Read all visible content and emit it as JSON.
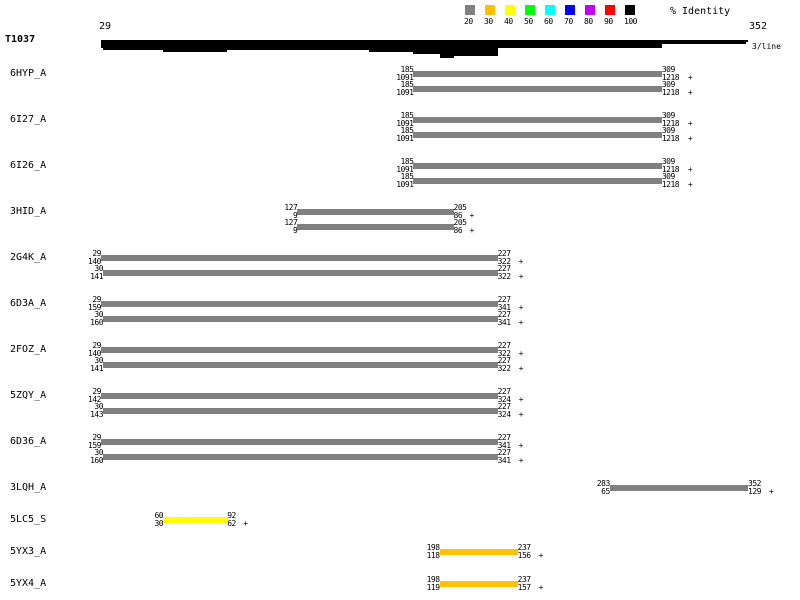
{
  "query": {
    "name": "T1037",
    "start": "29",
    "end": "352",
    "per_line_label": "3/line"
  },
  "legend": {
    "title": "% Identity",
    "items": [
      {
        "label": "20",
        "color": "#808080"
      },
      {
        "label": "30",
        "color": "#ffc000"
      },
      {
        "label": "40",
        "color": "#ffff00"
      },
      {
        "label": "50",
        "color": "#00ff00"
      },
      {
        "label": "60",
        "color": "#00ffff"
      },
      {
        "label": "70",
        "color": "#0000ff"
      },
      {
        "label": "80",
        "color": "#c000ff"
      },
      {
        "label": "90",
        "color": "#ff0000"
      },
      {
        "label": "100",
        "color": "#000000"
      }
    ]
  },
  "coverage": [
    [
      [
        29,
        352
      ]
    ],
    [
      [
        29,
        351
      ]
    ],
    [
      [
        29,
        309
      ]
    ],
    [
      [
        29,
        309
      ]
    ],
    [
      [
        30,
        227
      ]
    ],
    [
      [
        60,
        92
      ],
      [
        163,
        227
      ]
    ],
    [
      [
        185,
        227
      ]
    ],
    [
      [
        198,
        227
      ]
    ],
    [
      [
        198,
        205
      ]
    ]
  ],
  "hits": [
    {
      "name": "6HYP_A",
      "bars": [
        {
          "qs": "185",
          "qe": "309",
          "ts": "1091",
          "te": "1218",
          "strand": "+",
          "identity": 20
        },
        {
          "qs": "185",
          "qe": "309",
          "ts": "1091",
          "te": "1218",
          "strand": "+",
          "identity": 20
        }
      ]
    },
    {
      "name": "6I27_A",
      "bars": [
        {
          "qs": "185",
          "qe": "309",
          "ts": "1091",
          "te": "1218",
          "strand": "+",
          "identity": 20
        },
        {
          "qs": "185",
          "qe": "309",
          "ts": "1091",
          "te": "1218",
          "strand": "+",
          "identity": 20
        }
      ]
    },
    {
      "name": "6I26_A",
      "bars": [
        {
          "qs": "185",
          "qe": "309",
          "ts": "1091",
          "te": "1218",
          "strand": "+",
          "identity": 20
        },
        {
          "qs": "185",
          "qe": "309",
          "ts": "1091",
          "te": "1218",
          "strand": "+",
          "identity": 20
        }
      ]
    },
    {
      "name": "3HID_A",
      "bars": [
        {
          "qs": "127",
          "qe": "205",
          "ts": "9",
          "te": "86",
          "strand": "+",
          "identity": 20
        },
        {
          "qs": "127",
          "qe": "205",
          "ts": "9",
          "te": "86",
          "strand": "+",
          "identity": 20
        }
      ]
    },
    {
      "name": "2G4K_A",
      "bars": [
        {
          "qs": "29",
          "qe": "227",
          "ts": "140",
          "te": "322",
          "strand": "+",
          "identity": 20
        },
        {
          "qs": "30",
          "qe": "227",
          "ts": "141",
          "te": "322",
          "strand": "+",
          "identity": 20
        }
      ]
    },
    {
      "name": "6D3A_A",
      "bars": [
        {
          "qs": "29",
          "qe": "227",
          "ts": "159",
          "te": "341",
          "strand": "+",
          "identity": 20
        },
        {
          "qs": "30",
          "qe": "227",
          "ts": "160",
          "te": "341",
          "strand": "+",
          "identity": 20
        }
      ]
    },
    {
      "name": "2FOZ_A",
      "bars": [
        {
          "qs": "29",
          "qe": "227",
          "ts": "140",
          "te": "322",
          "strand": "+",
          "identity": 20
        },
        {
          "qs": "30",
          "qe": "227",
          "ts": "141",
          "te": "322",
          "strand": "+",
          "identity": 20
        }
      ]
    },
    {
      "name": "5ZQY_A",
      "bars": [
        {
          "qs": "29",
          "qe": "227",
          "ts": "142",
          "te": "324",
          "strand": "+",
          "identity": 20
        },
        {
          "qs": "30",
          "qe": "227",
          "ts": "143",
          "te": "324",
          "strand": "+",
          "identity": 20
        }
      ]
    },
    {
      "name": "6D36_A",
      "bars": [
        {
          "qs": "29",
          "qe": "227",
          "ts": "159",
          "te": "341",
          "strand": "+",
          "identity": 20
        },
        {
          "qs": "30",
          "qe": "227",
          "ts": "160",
          "te": "341",
          "strand": "+",
          "identity": 20
        }
      ]
    },
    {
      "name": "3LQH_A",
      "bars": [
        {
          "qs": "283",
          "qe": "352",
          "ts": "65",
          "te": "129",
          "strand": "+",
          "identity": 20
        }
      ]
    },
    {
      "name": "5LC5_S",
      "bars": [
        {
          "qs": "60",
          "qe": "92",
          "ts": "30",
          "te": "62",
          "strand": "+",
          "identity": 40
        }
      ]
    },
    {
      "name": "5YX3_A",
      "bars": [
        {
          "qs": "198",
          "qe": "237",
          "ts": "118",
          "te": "156",
          "strand": "+",
          "identity": 30
        }
      ]
    },
    {
      "name": "5YX4_A",
      "bars": [
        {
          "qs": "198",
          "qe": "237",
          "ts": "119",
          "te": "157",
          "strand": "+",
          "identity": 30
        }
      ]
    }
  ]
}
